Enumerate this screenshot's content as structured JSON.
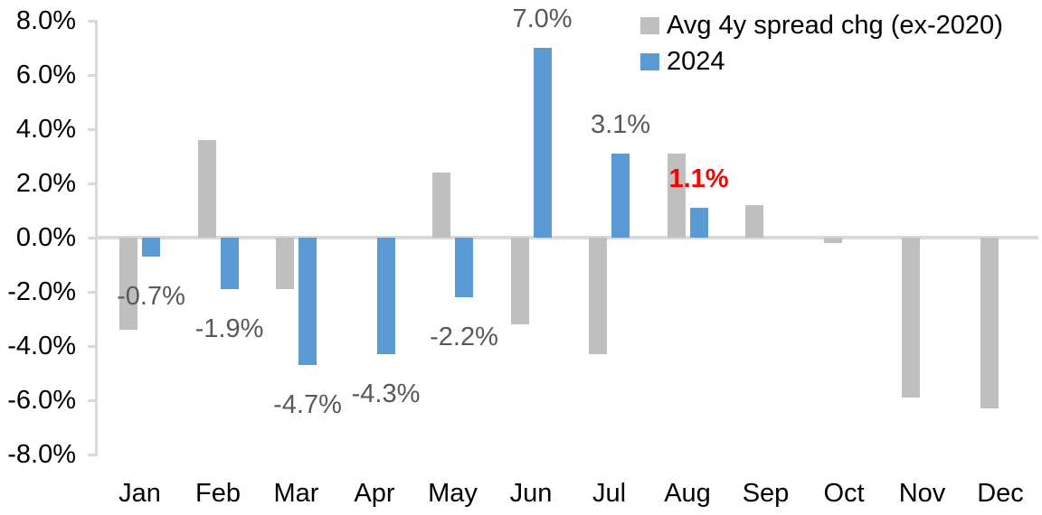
{
  "chart_data": {
    "type": "bar",
    "title": "",
    "categories": [
      "Jan",
      "Feb",
      "Mar",
      "Apr",
      "May",
      "Jun",
      "Jul",
      "Aug",
      "Sep",
      "Oct",
      "Nov",
      "Dec"
    ],
    "series": [
      {
        "name": "Avg 4y spread chg (ex-2020)",
        "color": "#BFBFBF",
        "values": [
          -3.4,
          3.6,
          -1.9,
          0.0,
          2.4,
          -3.2,
          -4.3,
          3.1,
          1.2,
          -0.2,
          -5.9,
          -6.3
        ]
      },
      {
        "name": "2024",
        "color": "#5B9BD5",
        "values": [
          -0.7,
          -1.9,
          -4.7,
          -4.3,
          -2.2,
          7.0,
          3.1,
          1.1,
          null,
          null,
          null,
          null
        ]
      }
    ],
    "point_labels": [
      {
        "category": "Jan",
        "series": "2024",
        "text": "-0.7%",
        "color": "#595959",
        "bold": false
      },
      {
        "category": "Feb",
        "series": "2024",
        "text": "-1.9%",
        "color": "#595959",
        "bold": false
      },
      {
        "category": "Mar",
        "series": "2024",
        "text": "-4.7%",
        "color": "#595959",
        "bold": false
      },
      {
        "category": "Apr",
        "series": "2024",
        "text": "-4.3%",
        "color": "#595959",
        "bold": false
      },
      {
        "category": "May",
        "series": "2024",
        "text": "-2.2%",
        "color": "#595959",
        "bold": false
      },
      {
        "category": "Jun",
        "series": "2024",
        "text": "7.0%",
        "color": "#595959",
        "bold": false
      },
      {
        "category": "Jul",
        "series": "2024",
        "text": "3.1%",
        "color": "#595959",
        "bold": false
      },
      {
        "category": "Aug",
        "series": "2024",
        "text": "1.1%",
        "color": "#FF0000",
        "bold": true
      }
    ],
    "y_axis": {
      "min": -8,
      "max": 8,
      "step": 2,
      "tick_labels": [
        "8.0%",
        "6.0%",
        "4.0%",
        "2.0%",
        "0.0%",
        "-2.0%",
        "-4.0%",
        "-6.0%",
        "-8.0%"
      ]
    },
    "x_axis": {
      "labels": [
        "Jan",
        "Feb",
        "Mar",
        "Apr",
        "May",
        "Jun",
        "Jul",
        "Aug",
        "Sep",
        "Oct",
        "Nov",
        "Dec"
      ]
    },
    "legend": {
      "position": "top-right",
      "items": [
        {
          "label": "Avg 4y spread chg (ex-2020)",
          "color": "#BFBFBF"
        },
        {
          "label": "2024",
          "color": "#5B9BD5"
        }
      ]
    },
    "grid": "none",
    "colors": {
      "axis_line": "#D9D9D9",
      "data_label": "#595959",
      "highlight_label": "#FF0000",
      "axis_text": "#000000",
      "background": "#FFFFFF"
    }
  }
}
